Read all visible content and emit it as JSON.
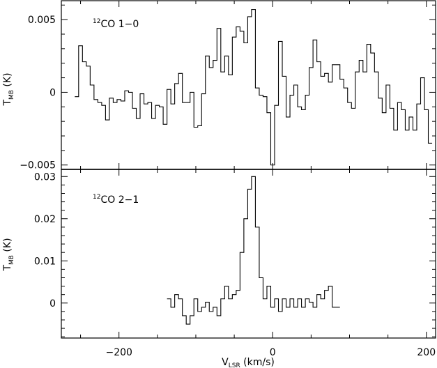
{
  "chart_data": {
    "type": "line",
    "style": "step",
    "xlabel": {
      "main": "V",
      "sub": "LSR",
      "unit": " (km/s)"
    },
    "xlim": [
      -275,
      212
    ],
    "x_ticks": [
      -200,
      0,
      200
    ],
    "x_tick_labels": [
      "−200",
      "0",
      "200"
    ],
    "panels": [
      {
        "label": {
          "sup": "12",
          "text": "CO  1−0"
        },
        "ylabel": {
          "main": "T",
          "sub": "MB",
          "unit": " (K)"
        },
        "ylim": [
          -0.0053,
          0.0063
        ],
        "y_ticks": [
          -0.005,
          0,
          0.005
        ],
        "y_tick_labels": [
          "−0.005",
          "0",
          "0.005"
        ],
        "series": [
          {
            "x": [
              -255,
              -250,
              -245,
              -240,
              -235,
              -230,
              -225,
              -220,
              -215,
              -210,
              -205,
              -200,
              -195,
              -190,
              -185,
              -180,
              -175,
              -170,
              -165,
              -160,
              -155,
              -150,
              -145,
              -140,
              -135,
              -130,
              -125,
              -120,
              -115,
              -110,
              -105,
              -100,
              -95,
              -90,
              -85,
              -80,
              -75,
              -70,
              -65,
              -60,
              -55,
              -50,
              -45,
              -40,
              -35,
              -30,
              -25,
              -20,
              -15,
              -10,
              -5,
              0,
              5,
              10,
              15,
              20,
              25,
              30,
              35,
              40,
              45,
              50,
              55,
              60,
              65,
              70,
              75,
              80,
              85,
              90,
              95,
              100,
              105,
              110,
              115,
              120,
              125,
              130,
              135,
              140,
              145,
              150,
              155,
              160,
              165,
              170,
              175,
              180,
              185,
              190,
              195,
              200,
              205
            ],
            "y": [
              -0.0003,
              0.0032,
              0.0021,
              0.0018,
              0.0005,
              -0.0005,
              -0.0007,
              -0.0009,
              -0.0019,
              -0.0004,
              -0.0007,
              -0.0005,
              -0.0006,
              0.0001,
              0.0,
              -0.0011,
              -0.0018,
              -0.0001,
              -0.0008,
              -0.0007,
              -0.0018,
              -0.0009,
              -0.001,
              -0.0022,
              0.0002,
              -0.0008,
              0.0006,
              0.0013,
              -0.0007,
              -0.0007,
              0.0,
              -0.0024,
              -0.0023,
              -0.0001,
              0.0025,
              0.0017,
              0.0022,
              0.0044,
              0.0014,
              0.0025,
              0.0012,
              0.0038,
              0.0045,
              0.0042,
              0.0034,
              0.0052,
              0.0057,
              0.0003,
              -0.0002,
              -0.0003,
              -0.0014,
              -0.005,
              -0.0009,
              0.0035,
              0.0011,
              -0.0017,
              -0.0002,
              0.0005,
              -0.001,
              -0.0012,
              -0.0002,
              0.0017,
              0.0036,
              0.0021,
              0.0011,
              0.0013,
              0.0007,
              0.0019,
              0.0019,
              0.0009,
              0.0003,
              -0.0007,
              -0.0011,
              0.0014,
              0.0022,
              0.0014,
              0.0033,
              0.0027,
              0.0014,
              -0.0004,
              -0.0014,
              0.0005,
              -0.0011,
              -0.0026,
              -0.0007,
              -0.0012,
              -0.0026,
              -0.0017,
              -0.0026,
              -0.0008,
              0.001,
              -0.0012,
              -0.0035
            ]
          }
        ]
      },
      {
        "label": {
          "sup": "12",
          "text": "CO  2−1"
        },
        "ylabel": {
          "main": "T",
          "sub": "MB",
          "unit": " (K)"
        },
        "ylim": [
          -0.0083,
          0.0317
        ],
        "y_ticks": [
          0,
          0.01,
          0.02,
          0.03
        ],
        "y_tick_labels": [
          "0",
          "0.01",
          "0.02",
          "0.03"
        ],
        "series": [
          {
            "x": [
              -135,
              -130,
              -125,
              -120,
              -115,
              -110,
              -105,
              -100,
              -95,
              -90,
              -85,
              -80,
              -75,
              -70,
              -65,
              -60,
              -55,
              -50,
              -45,
              -40,
              -35,
              -30,
              -25,
              -20,
              -15,
              -10,
              -5,
              0,
              5,
              10,
              15,
              20,
              25,
              30,
              35,
              40,
              45,
              50,
              55,
              60,
              65,
              70,
              75,
              80,
              85
            ],
            "y": [
              0.001,
              -0.001,
              0.002,
              0.001,
              -0.003,
              -0.005,
              -0.003,
              0.001,
              -0.002,
              -0.001,
              0.0002,
              -0.002,
              -0.001,
              -0.003,
              0.001,
              0.004,
              0.001,
              0.002,
              0.003,
              0.012,
              0.02,
              0.027,
              0.03,
              0.018,
              0.006,
              0.001,
              0.004,
              -0.001,
              0.001,
              -0.002,
              0.001,
              -0.001,
              0.001,
              -0.001,
              0.001,
              -0.001,
              0.001,
              0.0002,
              -0.001,
              0.002,
              0.001,
              0.003,
              0.004,
              -0.001,
              -0.001
            ]
          }
        ]
      }
    ]
  }
}
